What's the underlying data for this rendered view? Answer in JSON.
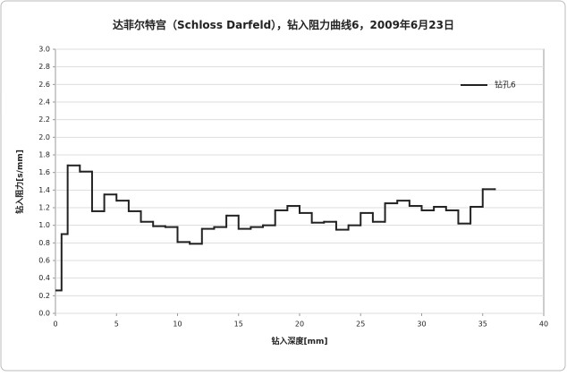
{
  "chart_data": {
    "type": "step",
    "title": "达菲尔特宫（Schloss Darfeld），钻入阻力曲线6，2009年6月23日",
    "x_label": "钻入深度[mm]",
    "y_label": "钻入阻力[s/mm]",
    "xlim": [
      0,
      40
    ],
    "xticks": [
      0,
      5,
      10,
      15,
      20,
      25,
      30,
      35,
      40
    ],
    "ylim": [
      0,
      3
    ],
    "yticks": [
      {
        "value": 0,
        "label": "0.0"
      },
      0.2,
      0.4,
      0.6,
      0.8,
      {
        "value": 1,
        "label": "1.0"
      },
      1.2,
      1.4,
      1.6,
      1.8,
      {
        "value": 2,
        "label": "2.0"
      },
      2.2,
      2.4,
      2.6,
      2.8,
      {
        "value": 3,
        "label": "3.0"
      }
    ],
    "grid": true,
    "legend": "upper right",
    "series": [
      {
        "name": "钻孔6",
        "color": "#222222",
        "x": [
          0,
          0.5,
          1,
          2,
          3,
          4,
          5,
          6,
          7,
          8,
          9,
          10,
          11,
          12,
          13,
          14,
          15,
          16,
          17,
          18,
          19,
          20,
          21,
          22,
          23,
          24,
          25,
          26,
          27,
          28,
          29,
          30,
          31,
          32,
          33,
          34,
          35,
          36
        ],
        "values": [
          0.26,
          0.9,
          1.68,
          1.61,
          1.16,
          1.35,
          1.28,
          1.16,
          1.04,
          0.99,
          0.98,
          0.81,
          0.79,
          0.96,
          0.98,
          1.11,
          0.96,
          0.98,
          1.0,
          1.17,
          1.22,
          1.14,
          1.03,
          1.04,
          0.95,
          1.0,
          1.14,
          1.04,
          1.25,
          1.28,
          1.22,
          1.17,
          1.21,
          1.17,
          1.02,
          1.21,
          1.41,
          1.41
        ]
      }
    ]
  }
}
